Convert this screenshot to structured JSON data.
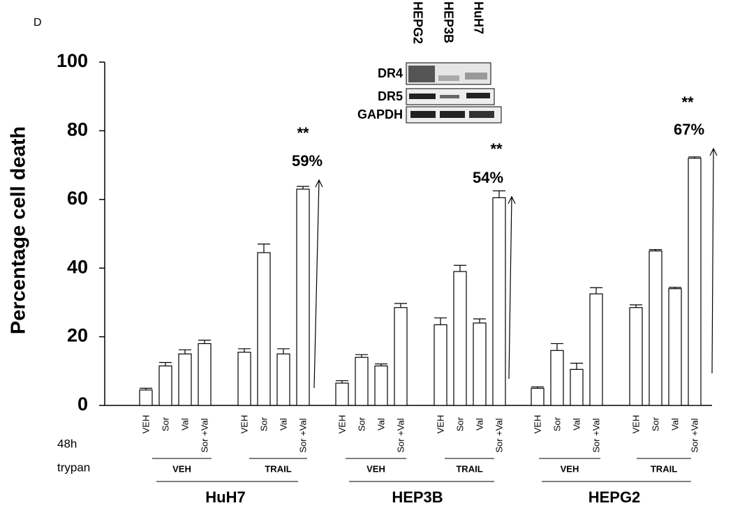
{
  "chart_data": {
    "type": "bar",
    "panel_label": "D",
    "y_label": "Percentage cell death",
    "categories": [
      "VEH",
      "Sor",
      "Val",
      "Sor +Val",
      "VEH",
      "Sor",
      "Val",
      "Sor +Val",
      "VEH",
      "Sor",
      "Val",
      "Sor +Val",
      "VEH",
      "Sor",
      "Val",
      "Sor +Val",
      "VEH",
      "Sor",
      "Val",
      "Sor +Val",
      "VEH",
      "Sor",
      "Val",
      "Sor +Val"
    ],
    "series": [
      {
        "color": "#ffffff",
        "values": [
          4.5,
          11.5,
          15,
          18,
          15.5,
          44.5,
          15,
          63,
          6.5,
          14,
          11.5,
          28.5,
          23.5,
          39,
          24,
          60.5,
          5,
          16,
          10.5,
          32.5,
          28.5,
          45,
          34,
          72
        ],
        "errors": [
          0.5,
          1,
          1.2,
          1,
          1,
          2.5,
          1.5,
          0.8,
          0.7,
          0.8,
          0.6,
          1.2,
          2,
          1.8,
          1.2,
          2,
          0.4,
          2,
          1.8,
          1.8,
          0.8,
          0.4,
          0.4,
          0.4
        ]
      }
    ],
    "row_labels": [
      "48h",
      "trypan"
    ],
    "groups": [
      {
        "name": "HuH7",
        "treatments": [
          "VEH",
          "TRAIL"
        ]
      },
      {
        "name": "HEP3B",
        "treatments": [
          "VEH",
          "TRAIL"
        ]
      },
      {
        "name": "HEPG2",
        "treatments": [
          "VEH",
          "TRAIL"
        ]
      }
    ],
    "annotations": [
      {
        "stars": "**",
        "label": "59%"
      },
      {
        "stars": "**",
        "label": "54%"
      },
      {
        "stars": "**",
        "label": "67%"
      }
    ],
    "ylim": [
      0,
      100
    ],
    "yticks": [
      0,
      20,
      40,
      60,
      80,
      100
    ]
  },
  "blot": {
    "lanes": [
      "HEPG2",
      "HEP3B",
      "HuH7"
    ],
    "rows": [
      "DR4",
      "DR5",
      "GAPDH"
    ]
  }
}
